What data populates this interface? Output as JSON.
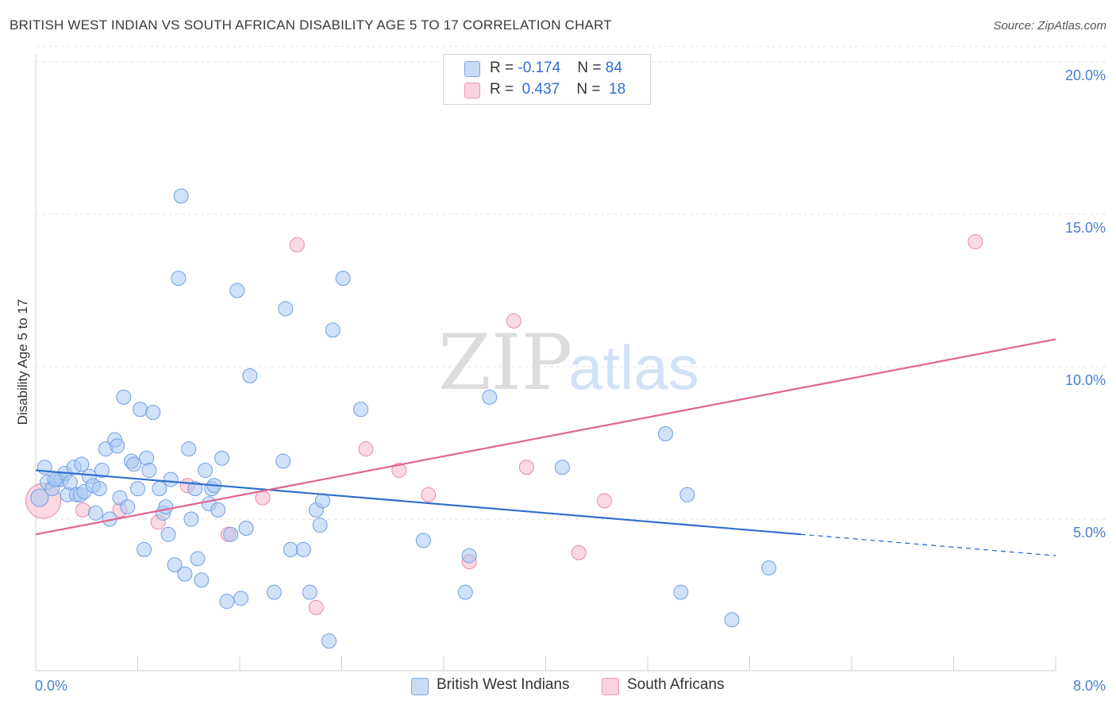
{
  "title": "BRITISH WEST INDIAN VS SOUTH AFRICAN DISABILITY AGE 5 TO 17 CORRELATION CHART",
  "source": "Source: ZipAtlas.com",
  "watermark": {
    "zip": "ZIP",
    "atlas": "atlas"
  },
  "legend": {
    "r_label": "R =",
    "n_label": "N =",
    "rows": [
      {
        "r": "-0.174",
        "n": "84",
        "color": "#a9c8f2"
      },
      {
        "r": "0.437",
        "n": "18",
        "color": "#f7b9cb"
      }
    ]
  },
  "bottom_legend": [
    "British West Indians",
    "South Africans"
  ],
  "chart_data": {
    "type": "scatter",
    "xlabel": "",
    "ylabel": "Disability Age 5 to 17",
    "xlim": [
      0,
      8
    ],
    "ylim": [
      0,
      20.5
    ],
    "x_tick_labels": [
      {
        "value": 0,
        "label": "0.0%"
      },
      {
        "value": 8,
        "label": "8.0%"
      }
    ],
    "y_tick_labels": [
      {
        "value": 5,
        "label": "5.0%"
      },
      {
        "value": 10,
        "label": "10.0%"
      },
      {
        "value": 15,
        "label": "15.0%"
      },
      {
        "value": 20,
        "label": "20.0%"
      }
    ],
    "grid": true,
    "series": [
      {
        "name": "British West Indians",
        "color": "#a9c8f2",
        "stroke": "#6f9fe0",
        "trend": {
          "x0": 0.0,
          "y0": 6.6,
          "x1": 6.0,
          "y1": 4.5,
          "dash_x1": 8.0,
          "dash_y1": 3.8,
          "color": "#2f6fcf"
        },
        "points": [
          [
            0.03,
            5.7
          ],
          [
            0.07,
            6.7
          ],
          [
            0.09,
            6.2
          ],
          [
            0.13,
            6.0
          ],
          [
            0.17,
            6.3
          ],
          [
            0.2,
            6.3
          ],
          [
            0.23,
            6.5
          ],
          [
            0.25,
            5.8
          ],
          [
            0.27,
            6.2
          ],
          [
            0.3,
            6.7
          ],
          [
            0.32,
            5.8
          ],
          [
            0.35,
            5.8
          ],
          [
            0.36,
            6.8
          ],
          [
            0.38,
            5.9
          ],
          [
            0.42,
            6.4
          ],
          [
            0.45,
            6.1
          ],
          [
            0.47,
            5.2
          ],
          [
            0.5,
            6.0
          ],
          [
            0.52,
            6.6
          ],
          [
            0.55,
            7.3
          ],
          [
            0.58,
            5.0
          ],
          [
            0.62,
            7.6
          ],
          [
            0.64,
            7.4
          ],
          [
            0.66,
            5.7
          ],
          [
            0.69,
            9.0
          ],
          [
            0.72,
            5.4
          ],
          [
            0.75,
            6.9
          ],
          [
            0.77,
            6.8
          ],
          [
            0.8,
            6.0
          ],
          [
            0.82,
            8.6
          ],
          [
            0.85,
            4.0
          ],
          [
            0.87,
            7.0
          ],
          [
            0.89,
            6.6
          ],
          [
            0.92,
            8.5
          ],
          [
            0.97,
            6.0
          ],
          [
            1.0,
            5.2
          ],
          [
            1.02,
            5.4
          ],
          [
            1.04,
            4.5
          ],
          [
            1.06,
            6.3
          ],
          [
            1.09,
            3.5
          ],
          [
            1.12,
            12.9
          ],
          [
            1.14,
            15.6
          ],
          [
            1.17,
            3.2
          ],
          [
            1.2,
            7.3
          ],
          [
            1.22,
            5.0
          ],
          [
            1.25,
            6.0
          ],
          [
            1.27,
            3.7
          ],
          [
            1.3,
            3.0
          ],
          [
            1.33,
            6.6
          ],
          [
            1.36,
            5.5
          ],
          [
            1.38,
            6.0
          ],
          [
            1.4,
            6.1
          ],
          [
            1.43,
            5.3
          ],
          [
            1.46,
            7.0
          ],
          [
            1.5,
            2.3
          ],
          [
            1.53,
            4.5
          ],
          [
            1.58,
            12.5
          ],
          [
            1.61,
            2.4
          ],
          [
            1.65,
            4.7
          ],
          [
            1.68,
            9.7
          ],
          [
            1.87,
            2.6
          ],
          [
            1.94,
            6.9
          ],
          [
            1.96,
            11.9
          ],
          [
            2.0,
            4.0
          ],
          [
            2.1,
            4.0
          ],
          [
            2.15,
            2.6
          ],
          [
            2.2,
            5.3
          ],
          [
            2.23,
            4.8
          ],
          [
            2.25,
            5.6
          ],
          [
            2.3,
            1.0
          ],
          [
            2.33,
            11.2
          ],
          [
            2.41,
            12.9
          ],
          [
            2.55,
            8.6
          ],
          [
            3.04,
            4.3
          ],
          [
            3.37,
            2.6
          ],
          [
            3.4,
            3.8
          ],
          [
            3.56,
            9.0
          ],
          [
            4.13,
            6.7
          ],
          [
            4.94,
            7.8
          ],
          [
            5.06,
            2.6
          ],
          [
            5.11,
            5.8
          ],
          [
            5.46,
            1.7
          ],
          [
            5.75,
            3.4
          ],
          [
            0.15,
            6.3
          ]
        ]
      },
      {
        "name": "South Africans",
        "color": "#f7b9cb",
        "stroke": "#e88aa8",
        "trend": {
          "x0": 0.0,
          "y0": 4.5,
          "x1": 8.0,
          "y1": 10.9,
          "color": "#e0648f"
        },
        "points": [
          [
            0.06,
            5.6
          ],
          [
            0.37,
            5.3
          ],
          [
            0.66,
            5.3
          ],
          [
            0.96,
            4.9
          ],
          [
            1.19,
            6.1
          ],
          [
            1.51,
            4.5
          ],
          [
            1.78,
            5.7
          ],
          [
            2.05,
            14.0
          ],
          [
            2.2,
            2.1
          ],
          [
            2.59,
            7.3
          ],
          [
            2.85,
            6.6
          ],
          [
            3.08,
            5.8
          ],
          [
            3.4,
            3.6
          ],
          [
            3.75,
            11.5
          ],
          [
            3.85,
            6.7
          ],
          [
            4.26,
            3.9
          ],
          [
            4.46,
            5.6
          ],
          [
            7.37,
            14.1
          ]
        ]
      }
    ]
  }
}
